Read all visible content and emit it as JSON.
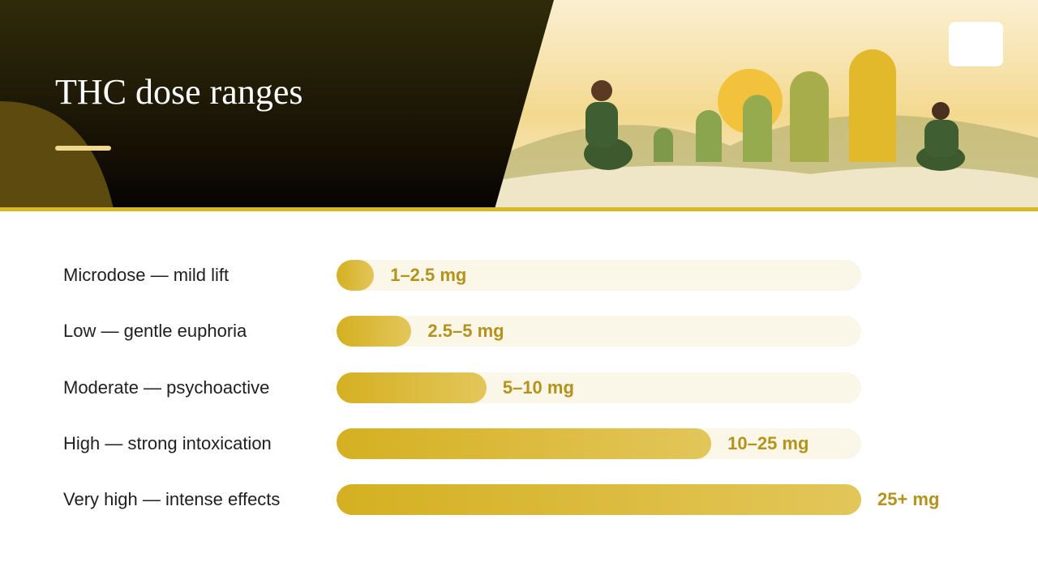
{
  "chart_data": {
    "type": "bar",
    "orientation": "horizontal",
    "title": "THC dose ranges",
    "categories": [
      "Microdose — mild lift",
      "Low — gentle euphoria",
      "Moderate — psychoactive",
      "High — strong intoxication",
      "Very high — intense effects"
    ],
    "values": [
      2.5,
      5,
      10,
      25,
      35
    ],
    "range_labels": [
      "1–2.5 mg",
      "2.5–5 mg",
      "5–10 mg",
      "10–25 mg",
      "25+ mg"
    ],
    "xlim": [
      0,
      35
    ],
    "color": "#d4b021",
    "track_color": "#faf6e8",
    "label_color": "#b3931a"
  }
}
